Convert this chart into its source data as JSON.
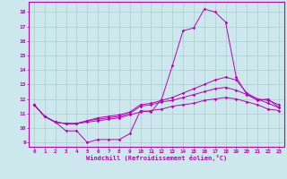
{
  "background_color": "#cce8ec",
  "grid_color": "#aacccc",
  "line_color": "#bb00bb",
  "xlabel": "Windchill (Refroidissement éolien,°C)",
  "xlim": [
    -0.5,
    23.5
  ],
  "ylim": [
    8.7,
    18.7
  ],
  "yticks": [
    9,
    10,
    11,
    12,
    13,
    14,
    15,
    16,
    17,
    18
  ],
  "xticks": [
    0,
    1,
    2,
    3,
    4,
    5,
    6,
    7,
    8,
    9,
    10,
    11,
    12,
    13,
    14,
    15,
    16,
    17,
    18,
    19,
    20,
    21,
    22,
    23
  ],
  "curves": [
    {
      "x": [
        0,
        1,
        2,
        3,
        4,
        5,
        6,
        7,
        8,
        9,
        10,
        11,
        12,
        13,
        14,
        15,
        16,
        17,
        18,
        19,
        20,
        21,
        22,
        23
      ],
      "y": [
        11.6,
        10.8,
        10.4,
        9.8,
        9.8,
        9.0,
        9.2,
        9.2,
        9.2,
        9.6,
        11.2,
        11.1,
        12.0,
        14.3,
        16.7,
        16.9,
        18.2,
        18.0,
        17.3,
        13.5,
        12.3,
        11.9,
        12.0,
        11.4
      ]
    },
    {
      "x": [
        0,
        1,
        2,
        3,
        4,
        5,
        6,
        7,
        8,
        9,
        10,
        11,
        12,
        13,
        14,
        15,
        16,
        17,
        18,
        19,
        20,
        21,
        22,
        23
      ],
      "y": [
        11.6,
        10.8,
        10.4,
        10.3,
        10.3,
        10.5,
        10.7,
        10.8,
        10.9,
        11.1,
        11.6,
        11.7,
        11.9,
        12.1,
        12.4,
        12.7,
        13.0,
        13.3,
        13.5,
        13.3,
        12.4,
        12.0,
        11.9,
        11.6
      ]
    },
    {
      "x": [
        0,
        1,
        2,
        3,
        4,
        5,
        6,
        7,
        8,
        9,
        10,
        11,
        12,
        13,
        14,
        15,
        16,
        17,
        18,
        19,
        20,
        21,
        22,
        23
      ],
      "y": [
        11.6,
        10.8,
        10.4,
        10.3,
        10.3,
        10.5,
        10.6,
        10.7,
        10.8,
        11.0,
        11.5,
        11.6,
        11.8,
        11.9,
        12.1,
        12.3,
        12.5,
        12.7,
        12.8,
        12.6,
        12.3,
        12.0,
        11.7,
        11.4
      ]
    },
    {
      "x": [
        0,
        1,
        2,
        3,
        4,
        5,
        6,
        7,
        8,
        9,
        10,
        11,
        12,
        13,
        14,
        15,
        16,
        17,
        18,
        19,
        20,
        21,
        22,
        23
      ],
      "y": [
        11.6,
        10.8,
        10.4,
        10.3,
        10.3,
        10.4,
        10.5,
        10.6,
        10.7,
        10.9,
        11.1,
        11.2,
        11.3,
        11.5,
        11.6,
        11.7,
        11.9,
        12.0,
        12.1,
        12.0,
        11.8,
        11.6,
        11.3,
        11.2
      ]
    }
  ]
}
